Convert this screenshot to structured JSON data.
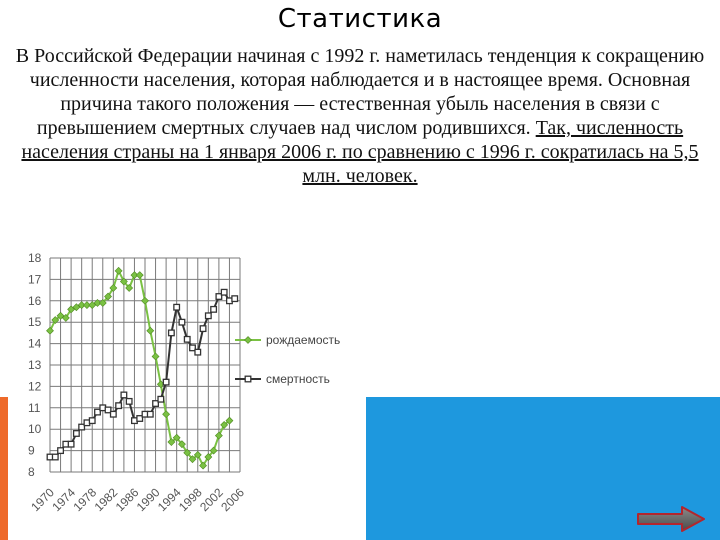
{
  "slide": {
    "title": "Статистика",
    "paragraph_plain": "В Российской Федерации начиная с 1992 г. наметилась тенденция к сокращению численности населения, которая наблюдается и в настоящее время. Основная причина такого положения — естественная убыль населения в связи с превышением смертных случаев над числом родившихся.",
    "paragraph_underlined": "Так, численность населения страны на 1 января 2006 г. по сравнению с 1996 г. сократилась на 5,5 млн. человек."
  },
  "colors": {
    "accent_orange": "#ee6a2a",
    "accent_blue": "#1e98de",
    "birth_series": "#7ac143",
    "death_series": "#333333"
  },
  "navigation": {
    "next_icon": "right-arrow-icon"
  },
  "chart_data": {
    "type": "line",
    "title": "",
    "xlabel": "",
    "ylabel": "",
    "x_ticks": [
      1970,
      1974,
      1978,
      1982,
      1986,
      1990,
      1994,
      1998,
      2002,
      2006
    ],
    "xlim": [
      1970,
      2006
    ],
    "ylim": [
      8,
      18
    ],
    "y_ticks": [
      8,
      9,
      10,
      11,
      12,
      13,
      14,
      15,
      16,
      17,
      18
    ],
    "grid": true,
    "legend_position": "right",
    "series": [
      {
        "name": "рождаемость",
        "marker": "diamond",
        "x": [
          1970,
          1971,
          1972,
          1973,
          1974,
          1975,
          1976,
          1977,
          1978,
          1979,
          1980,
          1981,
          1982,
          1983,
          1984,
          1985,
          1986,
          1987,
          1988,
          1989,
          1990,
          1991,
          1992,
          1993,
          1994,
          1995,
          1996,
          1997,
          1998,
          1999,
          2000,
          2001,
          2002,
          2003,
          2004
        ],
        "values": [
          14.6,
          15.1,
          15.3,
          15.2,
          15.6,
          15.7,
          15.8,
          15.8,
          15.8,
          15.9,
          15.9,
          16.2,
          16.6,
          17.4,
          16.9,
          16.6,
          17.2,
          17.2,
          16.0,
          14.6,
          13.4,
          12.1,
          10.7,
          9.4,
          9.6,
          9.3,
          8.9,
          8.6,
          8.8,
          8.3,
          8.7,
          9.0,
          9.7,
          10.2,
          10.4
        ]
      },
      {
        "name": "смертность",
        "marker": "square",
        "x": [
          1970,
          1971,
          1972,
          1973,
          1974,
          1975,
          1976,
          1977,
          1978,
          1979,
          1980,
          1981,
          1982,
          1983,
          1984,
          1985,
          1986,
          1987,
          1988,
          1989,
          1990,
          1991,
          1992,
          1993,
          1994,
          1995,
          1996,
          1997,
          1998,
          1999,
          2000,
          2001,
          2002,
          2003,
          2004,
          2005
        ],
        "values": [
          8.7,
          8.7,
          9.0,
          9.3,
          9.3,
          9.8,
          10.1,
          10.3,
          10.4,
          10.8,
          11.0,
          10.9,
          10.7,
          11.1,
          11.6,
          11.3,
          10.4,
          10.5,
          10.7,
          10.7,
          11.2,
          11.4,
          12.2,
          14.5,
          15.7,
          15.0,
          14.2,
          13.8,
          13.6,
          14.7,
          15.3,
          15.6,
          16.2,
          16.4,
          16.0,
          16.1
        ]
      }
    ]
  }
}
